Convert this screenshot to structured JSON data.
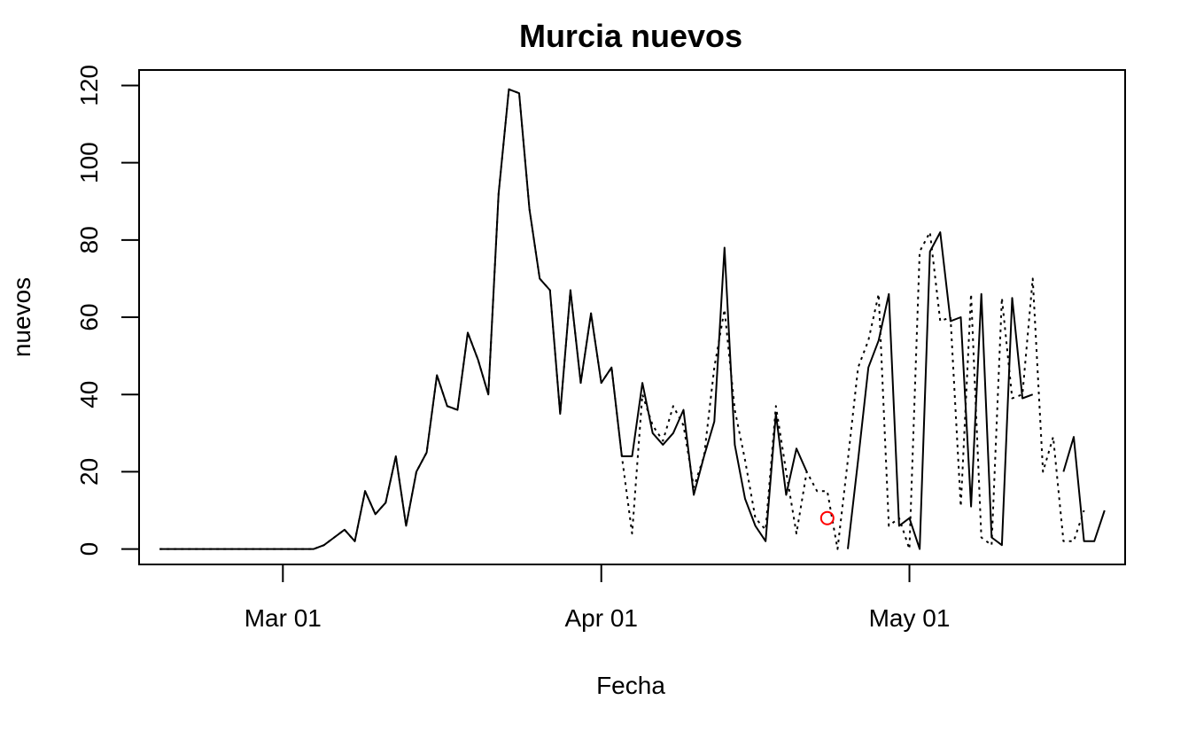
{
  "chart_data": {
    "type": "line",
    "title": "Murcia nuevos",
    "xlabel": "Fecha",
    "ylabel": "nuevos",
    "ylim": [
      -4,
      124
    ],
    "xlim": [
      "2020-02-16",
      "2020-05-22"
    ],
    "grid": false,
    "x_ticks": [
      {
        "date": "2020-03-01",
        "label": "Mar 01"
      },
      {
        "date": "2020-04-01",
        "label": "Apr 01"
      },
      {
        "date": "2020-05-01",
        "label": "May 01"
      }
    ],
    "y_ticks": [
      0,
      20,
      40,
      60,
      80,
      100,
      120
    ],
    "x_start": "2020-02-18",
    "series": [
      {
        "style": "solid",
        "color": "#000000",
        "values": [
          0,
          0,
          0,
          0,
          0,
          0,
          0,
          0,
          0,
          0,
          0,
          0,
          0,
          0,
          0,
          0,
          1,
          3,
          5,
          2,
          15,
          9,
          12,
          24,
          6,
          20,
          25,
          45,
          37,
          36,
          56,
          49,
          40,
          92,
          119,
          118,
          88,
          70,
          67,
          35,
          67,
          43,
          61,
          43,
          47,
          24,
          24,
          43,
          30,
          27,
          30,
          36,
          14,
          24,
          33,
          78,
          27,
          13,
          6,
          2,
          35,
          14,
          26,
          20,
          null,
          null,
          null,
          0,
          23,
          47,
          54,
          66,
          6,
          8,
          0,
          77,
          82,
          59,
          60,
          11,
          66,
          3,
          1,
          65,
          39,
          40,
          null,
          null,
          20,
          29,
          2,
          2,
          10
        ]
      },
      {
        "style": "dotted",
        "color": "#000000",
        "values": [
          0,
          0,
          0,
          0,
          0,
          0,
          0,
          0,
          0,
          0,
          0,
          0,
          0,
          0,
          0,
          0,
          1,
          3,
          5,
          2,
          15,
          9,
          12,
          24,
          6,
          20,
          25,
          45,
          37,
          36,
          56,
          49,
          40,
          92,
          119,
          118,
          88,
          70,
          67,
          35,
          67,
          43,
          61,
          43,
          47,
          24,
          4,
          40,
          32,
          28,
          37,
          32,
          16,
          24,
          47,
          62,
          36,
          23,
          8,
          5,
          37,
          20,
          4,
          20,
          15,
          15,
          0,
          23,
          47,
          54,
          66,
          6,
          8,
          0,
          77,
          82,
          59,
          60,
          11,
          66,
          3,
          1,
          65,
          39,
          40,
          70,
          20,
          29,
          2,
          2,
          10
        ]
      },
      {
        "style": "marker",
        "color": "#ff0000",
        "points": [
          {
            "x": "2020-04-23",
            "y": 8
          }
        ]
      }
    ]
  }
}
